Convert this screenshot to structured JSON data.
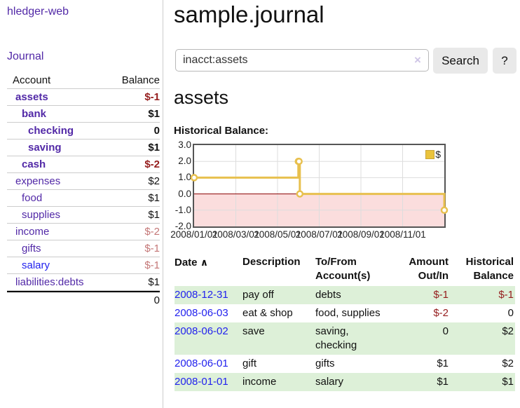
{
  "app": {
    "title": "hledger-web"
  },
  "sidebar": {
    "journal_link": "Journal",
    "col_account": "Account",
    "col_balance": "Balance",
    "accounts": [
      {
        "name": "assets",
        "balance": "$-1"
      },
      {
        "name": "bank",
        "balance": "$1"
      },
      {
        "name": "checking",
        "balance": "0"
      },
      {
        "name": "saving",
        "balance": "$1"
      },
      {
        "name": "cash",
        "balance": "$-2"
      },
      {
        "name": "expenses",
        "balance": "$2"
      },
      {
        "name": "food",
        "balance": "$1"
      },
      {
        "name": "supplies",
        "balance": "$1"
      },
      {
        "name": "income",
        "balance": "$-2"
      },
      {
        "name": "gifts",
        "balance": "$-1"
      },
      {
        "name": "salary",
        "balance": "$-1"
      },
      {
        "name": "liabilities:debts",
        "balance": "$1"
      }
    ],
    "total": "0"
  },
  "header": {
    "title": "sample.journal"
  },
  "search": {
    "value": "inacct:assets",
    "clear_icon": "×",
    "button": "Search",
    "help_button": "?"
  },
  "register": {
    "heading": "assets",
    "chart_label": "Historical Balance:",
    "table": {
      "col_date": "Date",
      "sort_icon": "∧",
      "col_description": "Description",
      "col_accounts": "To/From Account(s)",
      "col_amount": "Amount Out/In",
      "col_balance": "Historical Balance",
      "rows": [
        {
          "date": "2008-12-31",
          "description": "pay off",
          "accounts": "debts",
          "amount": "$-1",
          "balance": "$-1"
        },
        {
          "date": "2008-06-03",
          "description": "eat & shop",
          "accounts": "food, supplies",
          "amount": "$-2",
          "balance": "0"
        },
        {
          "date": "2008-06-02",
          "description": "save",
          "accounts": "saving, checking",
          "amount": "0",
          "balance": "$2"
        },
        {
          "date": "2008-06-01",
          "description": "gift",
          "accounts": "gifts",
          "amount": "$1",
          "balance": "$2"
        },
        {
          "date": "2008-01-01",
          "description": "income",
          "accounts": "salary",
          "amount": "$1",
          "balance": "$1"
        }
      ]
    }
  },
  "chart_data": {
    "type": "line",
    "title": "Historical Balance:",
    "step": true,
    "xlim": [
      0,
      12
    ],
    "ylim": [
      -2,
      3
    ],
    "yticks": [
      3,
      2,
      1,
      0,
      -1,
      -2
    ],
    "xticks": [
      {
        "m": 0,
        "label": "2008/01/01"
      },
      {
        "m": 2,
        "label": "2008/03/01"
      },
      {
        "m": 4,
        "label": "2008/05/01"
      },
      {
        "m": 6,
        "label": "2008/07/01"
      },
      {
        "m": 8,
        "label": "2008/09/01"
      },
      {
        "m": 10,
        "label": "2008/11/01"
      }
    ],
    "series": [
      {
        "name": "$",
        "points": [
          {
            "date": "2008-01-01",
            "x": 0,
            "y": 1
          },
          {
            "date": "2008-06-01",
            "x": 5.0,
            "y": 2
          },
          {
            "date": "2008-06-02",
            "x": 5.03,
            "y": 2
          },
          {
            "date": "2008-06-03",
            "x": 5.07,
            "y": 0
          },
          {
            "date": "2008-12-31",
            "x": 12,
            "y": -1
          }
        ]
      }
    ],
    "legend_position": "top-right",
    "colors": {
      "line": "#e8c04e",
      "negative_fill": "#fbdddd",
      "zero_line": "#8b0000",
      "grid": "#dddddd"
    }
  },
  "colors": {
    "link_purple": "#5229a7",
    "link_blue": "#2222ee",
    "negative_dark": "#951d1d",
    "negative_light": "#c47777",
    "row_green": "#ddf0d8"
  }
}
